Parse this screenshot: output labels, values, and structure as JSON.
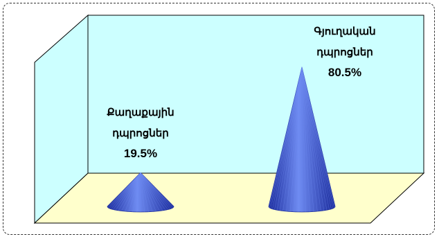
{
  "chart_data": {
    "type": "3d-cone",
    "categories": [
      "Քաղաքային դպրոցներ",
      "Գյուղական դպրոցներ"
    ],
    "values": [
      19.5,
      80.5
    ],
    "value_labels": [
      "19.5%",
      "80.5%"
    ],
    "label_lines": [
      [
        "Քաղաքային",
        "դպրոցներ"
      ],
      [
        "Գյուղական",
        "դպրոցներ"
      ]
    ],
    "unit": "%",
    "ylim": [
      0,
      100
    ],
    "grid": false,
    "legend": "none",
    "colors": {
      "cone": "#3355dd",
      "cone_dark": "#1a2a9a",
      "cone_light": "#6f8cf2",
      "back_wall": "#ccffff",
      "side_wall": "#ccffff",
      "floor": "#ffffcc",
      "frame_border": "#333333"
    }
  }
}
